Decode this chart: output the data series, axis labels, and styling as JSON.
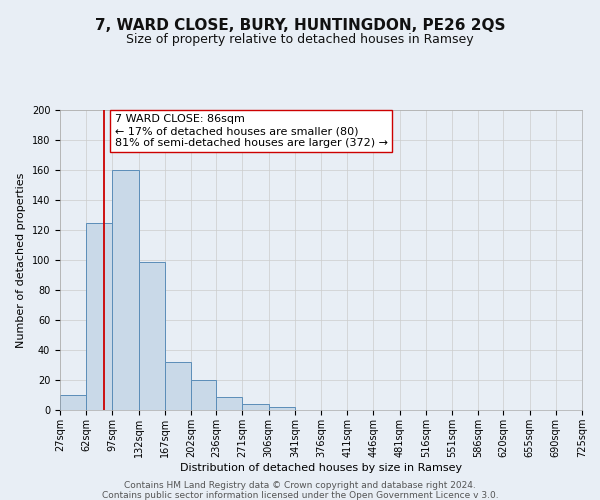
{
  "title": "7, WARD CLOSE, BURY, HUNTINGDON, PE26 2QS",
  "subtitle": "Size of property relative to detached houses in Ramsey",
  "xlabel": "Distribution of detached houses by size in Ramsey",
  "ylabel": "Number of detached properties",
  "bin_edges": [
    27,
    62,
    97,
    132,
    167,
    202,
    236,
    271,
    306,
    341,
    376,
    411,
    446,
    481,
    516,
    551,
    586,
    620,
    655,
    690,
    725
  ],
  "bin_labels": [
    "27sqm",
    "62sqm",
    "97sqm",
    "132sqm",
    "167sqm",
    "202sqm",
    "236sqm",
    "271sqm",
    "306sqm",
    "341sqm",
    "376sqm",
    "411sqm",
    "446sqm",
    "481sqm",
    "516sqm",
    "551sqm",
    "586sqm",
    "620sqm",
    "655sqm",
    "690sqm",
    "725sqm"
  ],
  "counts": [
    10,
    125,
    160,
    99,
    32,
    20,
    9,
    4,
    2,
    0,
    0,
    0,
    0,
    0,
    0,
    0,
    0,
    0,
    0,
    0
  ],
  "bar_facecolor": "#c9d9e8",
  "bar_edgecolor": "#5b8db8",
  "vline_x": 86,
  "vline_color": "#cc0000",
  "annotation_line1": "7 WARD CLOSE: 86sqm",
  "annotation_line2": "← 17% of detached houses are smaller (80)",
  "annotation_line3": "81% of semi-detached houses are larger (372) →",
  "annotation_box_edgecolor": "#cc0000",
  "annotation_box_facecolor": "#ffffff",
  "ylim": [
    0,
    200
  ],
  "yticks": [
    0,
    20,
    40,
    60,
    80,
    100,
    120,
    140,
    160,
    180,
    200
  ],
  "grid_color": "#cccccc",
  "bg_color": "#e8eef5",
  "footer_line1": "Contains HM Land Registry data © Crown copyright and database right 2024.",
  "footer_line2": "Contains public sector information licensed under the Open Government Licence v 3.0.",
  "title_fontsize": 11,
  "subtitle_fontsize": 9,
  "axis_label_fontsize": 8,
  "tick_fontsize": 7,
  "annotation_fontsize": 8,
  "footer_fontsize": 6.5
}
